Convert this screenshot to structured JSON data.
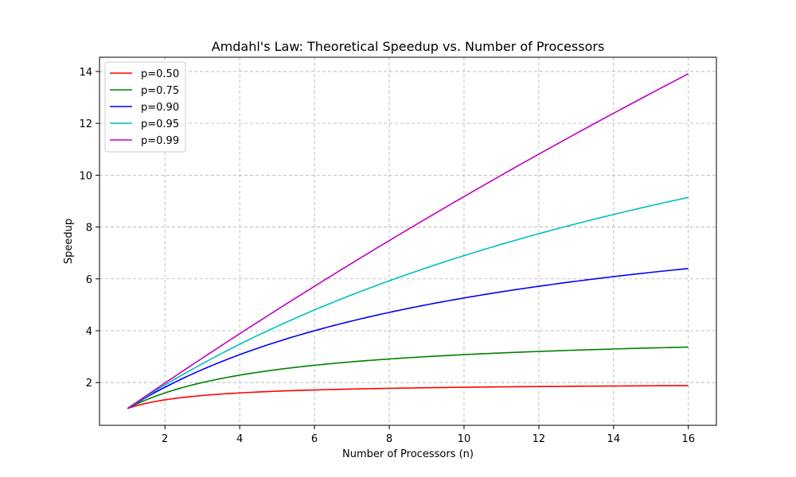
{
  "chart_data": {
    "type": "line",
    "title": "Amdahl's Law: Theoretical Speedup vs. Number of Processors",
    "xlabel": "Number of Processors (n)",
    "ylabel": "Speedup",
    "xlim": [
      0.25,
      16.75
    ],
    "ylim": [
      0.35,
      14.55
    ],
    "xticks": [
      "2",
      "4",
      "6",
      "8",
      "10",
      "12",
      "14",
      "16"
    ],
    "yticks": [
      "2",
      "4",
      "6",
      "8",
      "10",
      "12",
      "14"
    ],
    "grid": true,
    "legend_position": "top-left",
    "x": [
      1,
      2,
      3,
      4,
      5,
      6,
      7,
      8,
      9,
      10,
      11,
      12,
      13,
      14,
      15,
      16
    ],
    "series": [
      {
        "name": "p=0.50",
        "color": "#ff0000",
        "values": [
          1.0,
          1.333,
          1.5,
          1.6,
          1.667,
          1.714,
          1.75,
          1.778,
          1.8,
          1.818,
          1.833,
          1.846,
          1.857,
          1.867,
          1.875,
          1.882
        ]
      },
      {
        "name": "p=0.75",
        "color": "#008000",
        "values": [
          1.0,
          1.6,
          2.0,
          2.286,
          2.5,
          2.667,
          2.8,
          2.909,
          3.0,
          3.077,
          3.143,
          3.2,
          3.25,
          3.294,
          3.333,
          3.368
        ]
      },
      {
        "name": "p=0.90",
        "color": "#0000ff",
        "values": [
          1.0,
          1.818,
          2.5,
          3.077,
          3.571,
          4.0,
          4.375,
          4.706,
          5.0,
          5.263,
          5.5,
          5.714,
          5.909,
          6.087,
          6.25,
          6.4
        ]
      },
      {
        "name": "p=0.95",
        "color": "#00bfbf",
        "values": [
          1.0,
          1.905,
          2.727,
          3.478,
          4.167,
          4.8,
          5.385,
          5.926,
          6.429,
          6.897,
          7.333,
          7.742,
          8.125,
          8.485,
          8.824,
          9.143
        ]
      },
      {
        "name": "p=0.99",
        "color": "#bf00bf",
        "values": [
          1.0,
          1.98,
          2.941,
          3.883,
          4.808,
          5.714,
          6.604,
          7.477,
          8.333,
          9.174,
          10.0,
          10.811,
          11.607,
          12.389,
          13.158,
          13.913
        ]
      }
    ]
  }
}
